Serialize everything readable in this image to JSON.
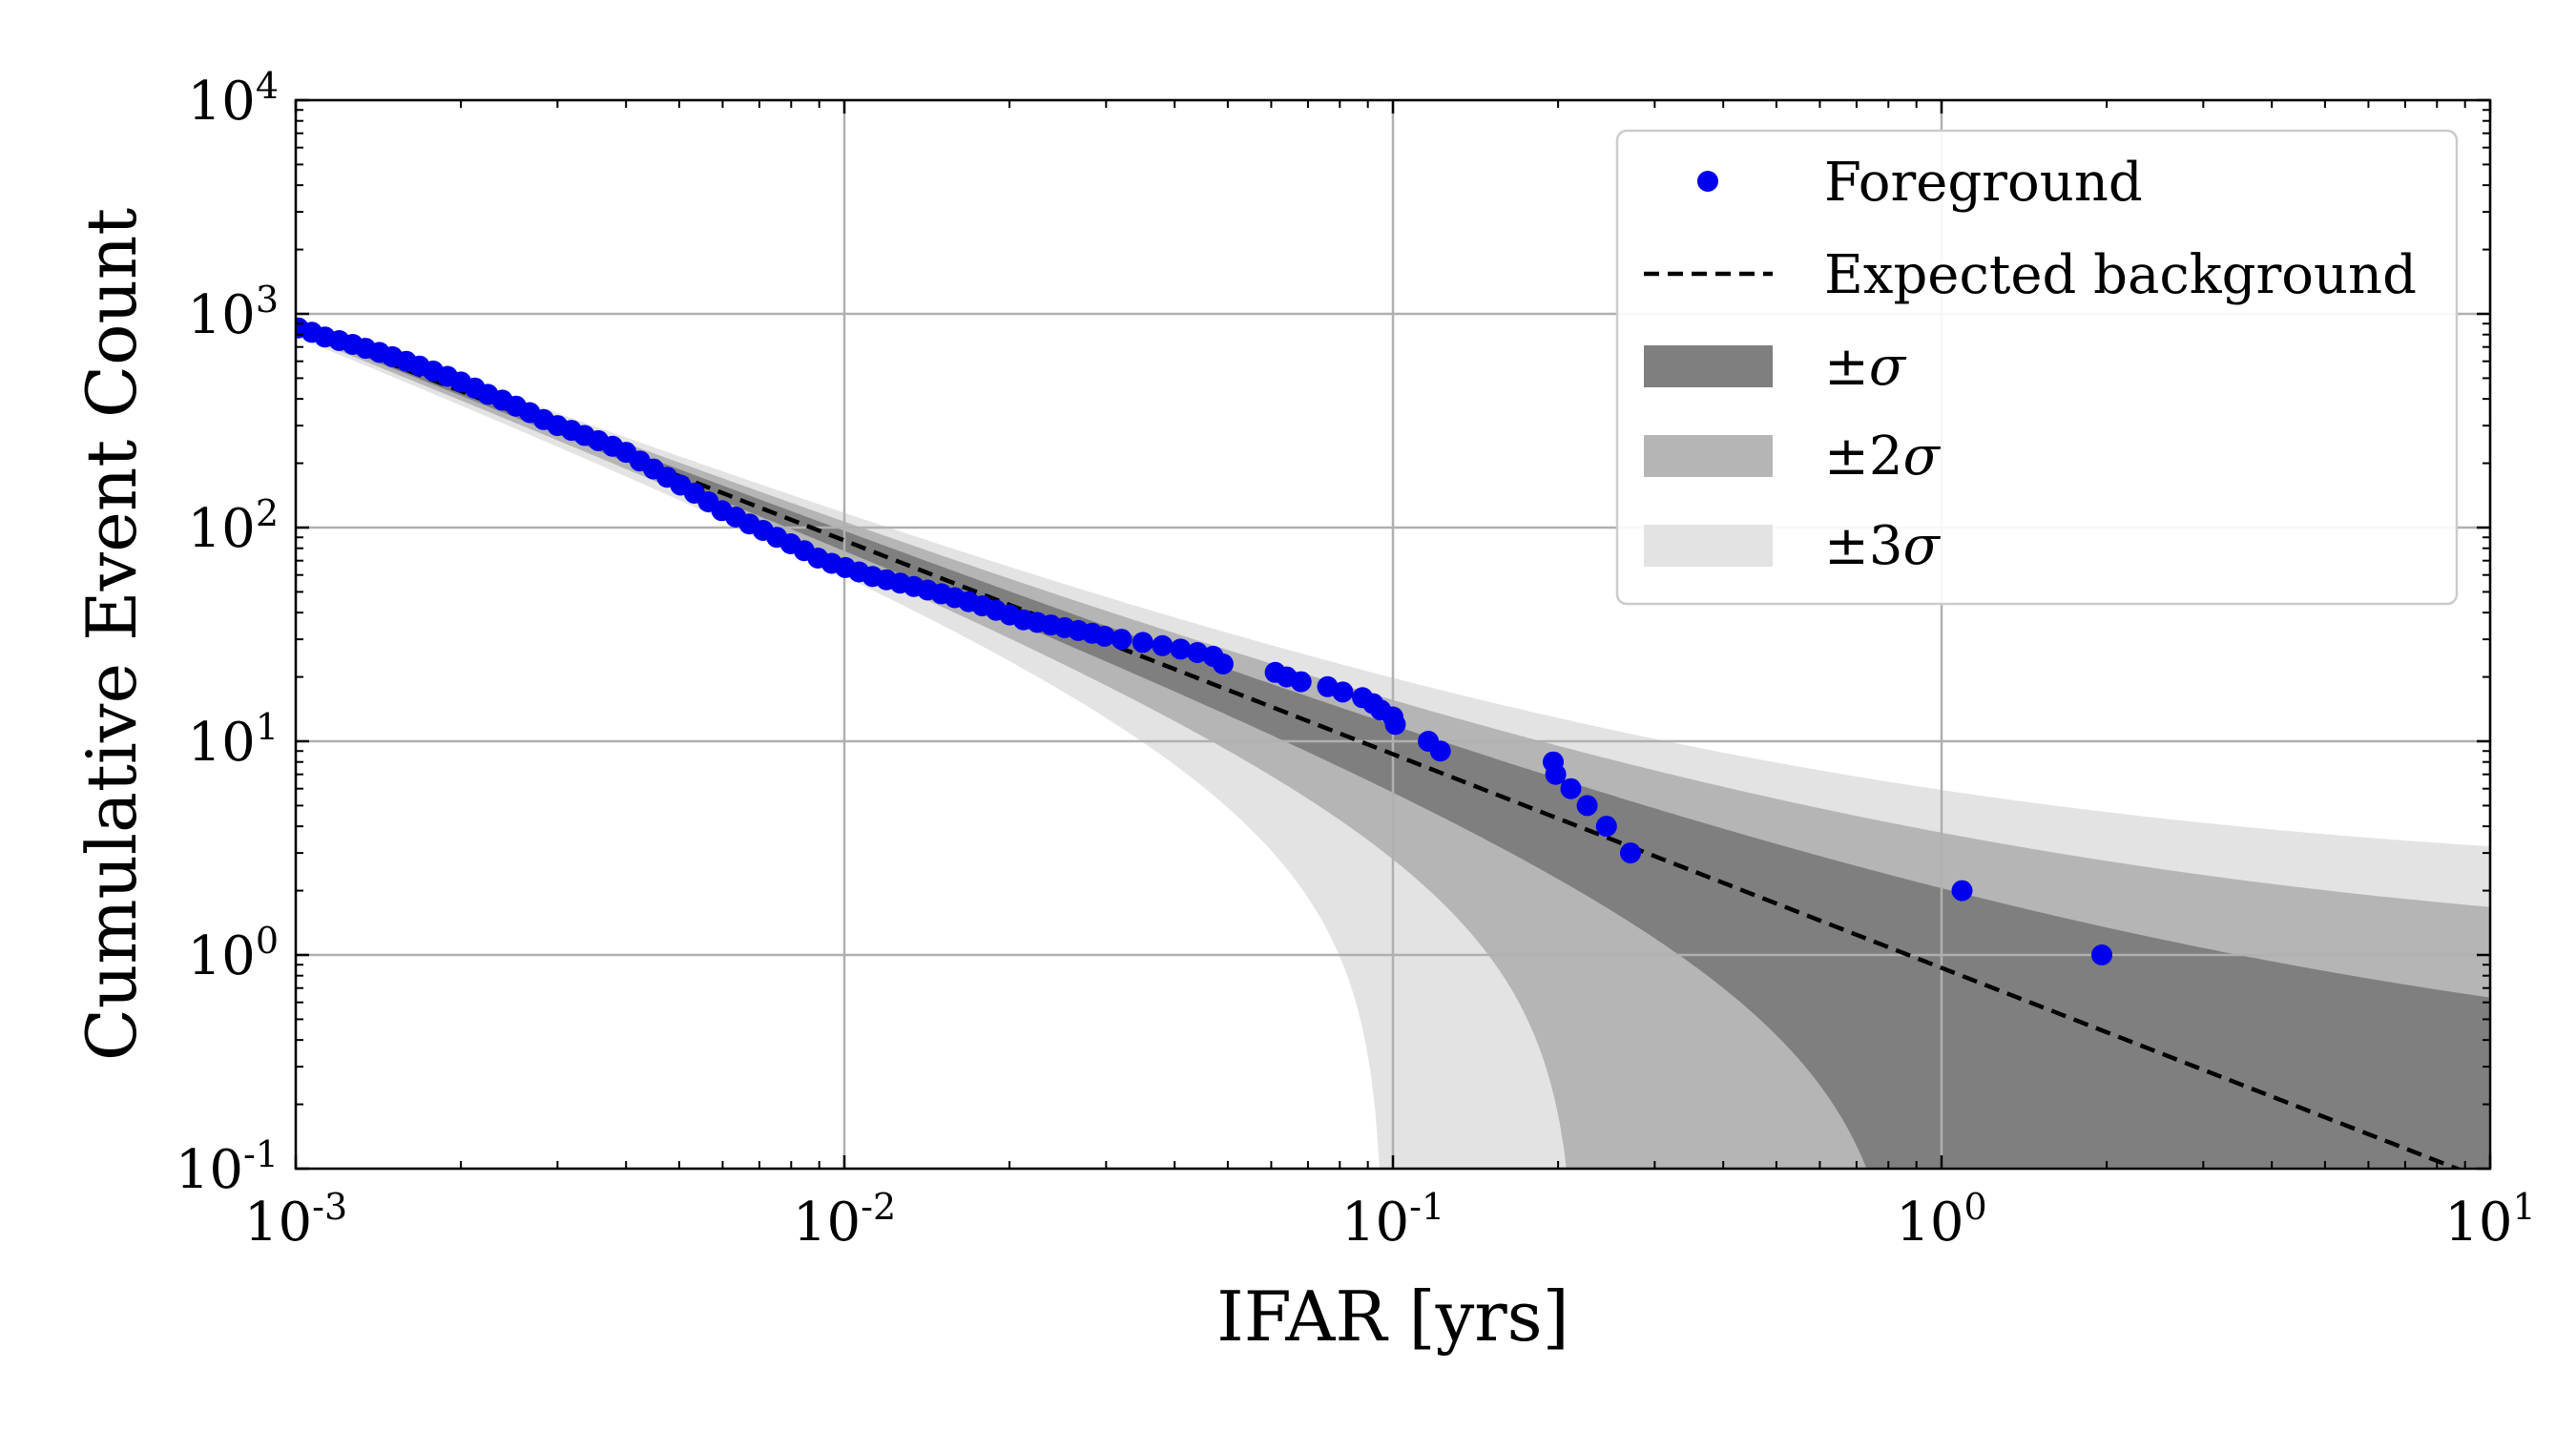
{
  "chart_data": {
    "type": "scatter",
    "title": "",
    "xlabel": "IFAR [yrs]",
    "ylabel": "Cumulative Event Count",
    "xscale": "log",
    "yscale": "log",
    "xlim": [
      0.001,
      10
    ],
    "ylim": [
      0.1,
      10000
    ],
    "grid": true,
    "legend_position": "top-right",
    "x_ticks": [
      {
        "value": 0.001,
        "base": "10",
        "exp": "-3"
      },
      {
        "value": 0.01,
        "base": "10",
        "exp": "-2"
      },
      {
        "value": 0.1,
        "base": "10",
        "exp": "-1"
      },
      {
        "value": 1,
        "base": "10",
        "exp": "0"
      },
      {
        "value": 10,
        "base": "10",
        "exp": "1"
      }
    ],
    "y_ticks": [
      {
        "value": 0.1,
        "base": "10",
        "exp": "-1"
      },
      {
        "value": 1,
        "base": "10",
        "exp": "0"
      },
      {
        "value": 10,
        "base": "10",
        "exp": "1"
      },
      {
        "value": 100,
        "base": "10",
        "exp": "2"
      },
      {
        "value": 1000,
        "base": "10",
        "exp": "3"
      },
      {
        "value": 10000,
        "base": "10",
        "exp": "4"
      }
    ],
    "expected_background": {
      "name": "Expected background",
      "x": [
        0.001,
        10
      ],
      "y": [
        870,
        0.087
      ]
    },
    "bands": [
      {
        "name": "±σ",
        "label_prefix": "±",
        "label_sym": "σ",
        "color": "#7f7f7f",
        "k": 1
      },
      {
        "name": "±2σ",
        "label_prefix": "±2",
        "label_sym": "σ",
        "color": "#b5b5b5",
        "k": 2
      },
      {
        "name": "±3σ",
        "label_prefix": "±3",
        "label_sym": "σ",
        "color": "#e3e3e3",
        "k": 3
      }
    ],
    "foreground": {
      "name": "Foreground",
      "color": "#0000ee",
      "x": [
        0.00101,
        0.00107,
        0.00113,
        0.0012,
        0.00127,
        0.00134,
        0.00142,
        0.0015,
        0.00159,
        0.00168,
        0.00178,
        0.00189,
        0.002,
        0.00212,
        0.00224,
        0.00238,
        0.00252,
        0.00267,
        0.00283,
        0.003,
        0.00318,
        0.00336,
        0.00356,
        0.00378,
        0.004,
        0.00424,
        0.00449,
        0.00475,
        0.00503,
        0.00533,
        0.00565,
        0.00598,
        0.00634,
        0.00671,
        0.00711,
        0.00753,
        0.00798,
        0.00845,
        0.00895,
        0.00948,
        0.01004,
        0.01063,
        0.01126,
        0.01193,
        0.01264,
        0.01339,
        0.01418,
        0.01502,
        0.0159,
        0.01685,
        0.01784,
        0.0189,
        0.02002,
        0.02121,
        0.02246,
        0.0238,
        0.0252,
        0.0267,
        0.0283,
        0.0298,
        0.032,
        0.035,
        0.038,
        0.041,
        0.044,
        0.047,
        0.049,
        0.061,
        0.064,
        0.068,
        0.076,
        0.081,
        0.088,
        0.092,
        0.095,
        0.1,
        0.101,
        0.116,
        0.122,
        0.196,
        0.198,
        0.211,
        0.226,
        0.245,
        0.271,
        1.09,
        1.96
      ],
      "y": [
        860,
        820,
        780,
        750,
        720,
        690,
        660,
        630,
        600,
        570,
        540,
        510,
        480,
        450,
        420,
        395,
        370,
        345,
        320,
        300,
        285,
        270,
        255,
        240,
        225,
        205,
        188,
        172,
        158,
        145,
        132,
        120,
        112,
        104,
        97,
        90,
        84,
        78,
        72,
        68,
        65,
        62,
        59,
        57,
        55,
        53,
        51,
        49,
        47,
        45,
        43,
        41,
        39,
        37,
        36,
        35,
        34,
        33,
        32,
        31,
        30,
        29,
        28,
        27,
        26,
        25,
        23,
        21,
        20,
        19,
        18,
        17,
        16,
        15,
        14,
        13,
        12,
        10,
        9,
        8,
        7,
        6,
        5,
        4,
        3,
        2,
        1
      ]
    }
  }
}
